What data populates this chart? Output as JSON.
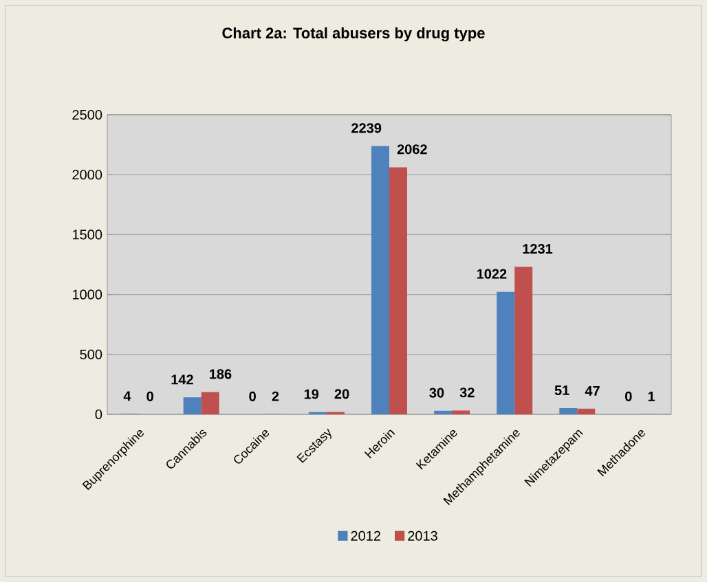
{
  "chart_data": {
    "type": "bar",
    "title": "Chart 2a: Total abusers by drug type",
    "categories": [
      "Buprenorphine",
      "Cannabis",
      "Cocaine",
      "Ecstasy",
      "Heroin",
      "Ketamine",
      "Methamphetamine",
      "Nimetazepam",
      "Methadone"
    ],
    "series": [
      {
        "name": "2012",
        "color": "#4f81bd",
        "values": [
          4,
          142,
          0,
          19,
          2239,
          30,
          1022,
          51,
          0
        ]
      },
      {
        "name": "2013",
        "color": "#c0504d",
        "values": [
          0,
          186,
          2,
          20,
          2062,
          32,
          1231,
          47,
          1
        ]
      }
    ],
    "ylim": [
      0,
      2500
    ],
    "yticks": [
      0,
      500,
      1000,
      1500,
      2000,
      2500
    ],
    "grid": "y",
    "legend": "bottom",
    "data_labels": true
  }
}
